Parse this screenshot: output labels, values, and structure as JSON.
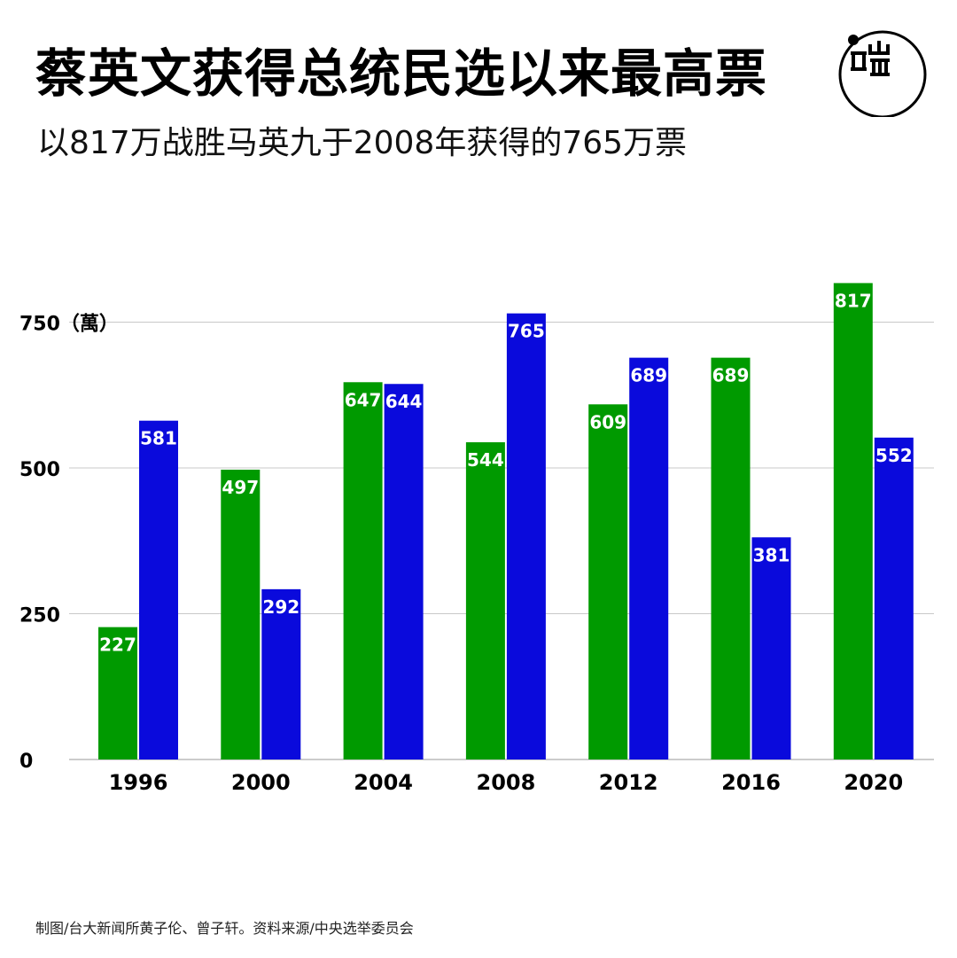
{
  "header": {
    "title": "蔡英文获得总统民选以来最高票",
    "subtitle": "以817万战胜马英九于2008年获得的765万票"
  },
  "logo": {
    "icon": "端-logo-icon"
  },
  "footer": {
    "source": "制图/台大新闻所黄子伦、曾子轩。资料来源/中央选举委员会"
  },
  "colors": {
    "green": "#009A00",
    "blue": "#0A0ADC",
    "grid": "#c8c8c8",
    "axis": "#999999",
    "label": "#ffffff"
  },
  "chart_data": {
    "type": "bar",
    "categories": [
      "1996",
      "2000",
      "2004",
      "2008",
      "2012",
      "2016",
      "2020"
    ],
    "series": [
      {
        "values": [
          227,
          497,
          647,
          544,
          609,
          689,
          817
        ]
      },
      {
        "values": [
          581,
          292,
          644,
          765,
          689,
          381,
          552
        ]
      }
    ],
    "yticks": [
      {
        "value": 0,
        "label": "0"
      },
      {
        "value": 250,
        "label": "250"
      },
      {
        "value": 500,
        "label": "500"
      },
      {
        "value": 750,
        "label": "750（萬）"
      }
    ],
    "ylim": [
      0,
      850
    ],
    "grid": true,
    "legend": "none"
  }
}
